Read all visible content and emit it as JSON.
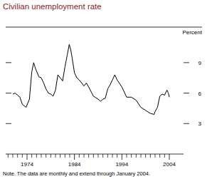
{
  "chart_data": {
    "type": "line",
    "title": "Civilian unemployment rate",
    "ylabel": "Percent",
    "note": "Note. The data are monthly and extend through January 2004.",
    "x": [
      1971.0,
      1971.5,
      1972.0,
      1972.5,
      1973.0,
      1973.8,
      1974.5,
      1975.0,
      1975.4,
      1975.8,
      1976.5,
      1977.0,
      1977.5,
      1978.0,
      1978.5,
      1979.0,
      1979.5,
      1980.0,
      1980.5,
      1981.0,
      1981.5,
      1982.0,
      1982.5,
      1982.9,
      1983.2,
      1983.5,
      1984.0,
      1984.5,
      1985.0,
      1986.0,
      1986.5,
      1987.0,
      1988.0,
      1989.0,
      1989.5,
      1990.0,
      1990.5,
      1991.0,
      1991.5,
      1992.0,
      1992.5,
      1993.0,
      1994.0,
      1995.0,
      1996.0,
      1997.0,
      1998.0,
      1999.0,
      2000.0,
      2000.8,
      2001.0,
      2001.5,
      2002.0,
      2002.5,
      2003.0,
      2003.5,
      2003.8,
      2004.0
    ],
    "series": [
      {
        "name": "Civilian unemployment rate",
        "color": "#000000",
        "values": [
          5.9,
          6.0,
          5.8,
          5.6,
          4.9,
          4.6,
          5.4,
          8.1,
          9.0,
          8.4,
          7.6,
          7.5,
          7.0,
          6.4,
          6.0,
          5.9,
          5.7,
          6.3,
          7.8,
          7.5,
          7.2,
          8.6,
          9.8,
          10.8,
          10.3,
          9.5,
          8.0,
          7.5,
          7.3,
          6.7,
          7.0,
          6.6,
          5.7,
          5.4,
          5.2,
          5.4,
          5.5,
          6.4,
          6.8,
          7.3,
          7.8,
          7.3,
          6.6,
          5.6,
          5.6,
          5.3,
          4.6,
          4.3,
          4.0,
          3.9,
          4.2,
          4.6,
          5.7,
          5.9,
          5.8,
          6.3,
          6.0,
          5.6
        ]
      }
    ],
    "xlim": [
      1969.5,
      2007
    ],
    "xticks": [
      1974,
      1984,
      1994,
      2004
    ],
    "ylim": [
      0,
      12.5
    ],
    "yticks": [
      3,
      6,
      9
    ]
  }
}
